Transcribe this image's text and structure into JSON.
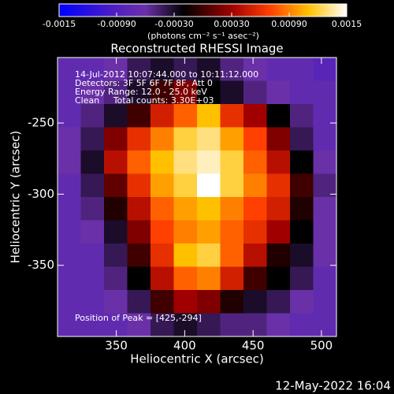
{
  "chart_data": {
    "type": "heatmap",
    "title": "Reconstructed RHESSI Image",
    "x_label": "Heliocentric X (arcsec)",
    "y_label": "Heliocentric Y (arcsec)",
    "colorbar_label": "(photons cm⁻² s⁻¹ asec⁻²)",
    "annotations": [
      "14-Jul-2012 10:07:44.000 to 10:11:12.000",
      "Detectors: 3F 5F 6F 7F 8F, Att 0",
      "Energy Range: 12.0 - 25.0 keV",
      "Clean     Total counts: 3.30E+03"
    ],
    "peak_label": "Position of Peak = [425,-294]",
    "timestamp": "12-May-2022 16:04",
    "xlim": [
      307,
      511
    ],
    "ylim": [
      -400,
      -204
    ],
    "xticks": [
      350,
      400,
      450,
      500
    ],
    "yticks": [
      -250,
      -300,
      -350
    ],
    "zlim": [
      -0.0015,
      0.0015
    ],
    "zticks": [
      -0.0015,
      {
        "value": -0.0009,
        "label": "-0.00090"
      },
      {
        "value": -0.0003,
        "label": "-0.00030"
      },
      {
        "value": 0.0003,
        "label": "0.00030"
      },
      {
        "value": 0.0009,
        "label": "0.00090"
      },
      0.0015
    ],
    "colorscale": [
      [
        -0.0015,
        "#0000ff"
      ],
      [
        -0.0009,
        "#5020c0"
      ],
      [
        -0.0006,
        "#6a30a8"
      ],
      [
        -0.0002,
        "#000000"
      ],
      [
        0.0003,
        "#a00000"
      ],
      [
        0.0007,
        "#ff4000"
      ],
      [
        0.0011,
        "#ffc000"
      ],
      [
        0.0015,
        "#ffffff"
      ]
    ],
    "z": [
      [
        -0.0007,
        -0.0007,
        -0.0006,
        -0.0004,
        -0.0003,
        -0.0004,
        -0.0003,
        -0.0005,
        -0.0006,
        -0.0007,
        -0.0007,
        -0.0008
      ],
      [
        -0.0007,
        -0.0006,
        -0.0005,
        -0.0003,
        0,
        0.0002,
        -0.0002,
        -0.0003,
        -0.0005,
        -0.0006,
        -0.0007,
        -0.0007
      ],
      [
        -0.0007,
        -0.0005,
        -0.0003,
        0,
        0.0005,
        0.0008,
        0.0011,
        0.0006,
        0.0003,
        -0.0002,
        -0.0005,
        -0.0007
      ],
      [
        -0.0006,
        -0.0004,
        0.0002,
        0.0006,
        0.0009,
        0.0012,
        0.0013,
        0.001,
        0.0007,
        0.0002,
        -0.0004,
        -0.0007
      ],
      [
        -0.0006,
        -0.0003,
        0.0004,
        0.0008,
        0.0011,
        0.0013,
        0.0014,
        0.0012,
        0.0008,
        0.0004,
        -0.0002,
        -0.0006
      ],
      [
        -0.0007,
        -0.0004,
        0.0001,
        0.0006,
        0.001,
        0.0012,
        0.0015,
        0.0012,
        0.0009,
        0.0006,
        0,
        -0.0005
      ],
      [
        -0.0007,
        -0.0005,
        -0.0001,
        0.0004,
        0.0008,
        0.001,
        0.0011,
        0.0009,
        0.0007,
        0.0005,
        -0.0001,
        -0.0006
      ],
      [
        -0.0007,
        -0.0006,
        -0.0003,
        0.0002,
        0.0007,
        0.0009,
        0.001,
        0.0008,
        0.0006,
        0.0003,
        -0.0002,
        -0.0006
      ],
      [
        -0.0007,
        -0.0007,
        -0.0004,
        0,
        0.0006,
        0.0011,
        0.0012,
        0.0008,
        0.0004,
        -0.0001,
        -0.0003,
        -0.0006
      ],
      [
        -0.0007,
        -0.0007,
        -0.0005,
        -0.0002,
        0.0004,
        0.0008,
        0.0009,
        0.0005,
        0,
        -0.0002,
        -0.0004,
        -0.0007
      ],
      [
        -0.0007,
        -0.0007,
        -0.0006,
        -0.0004,
        0,
        0.0003,
        0.0002,
        -0.0001,
        -0.0003,
        -0.0004,
        -0.0006,
        -0.0007
      ],
      [
        -0.0007,
        -0.0007,
        -0.0007,
        -0.0006,
        -0.0004,
        -0.0003,
        -0.0004,
        -0.0005,
        -0.0005,
        -0.0006,
        -0.0007,
        -0.0007
      ]
    ]
  }
}
